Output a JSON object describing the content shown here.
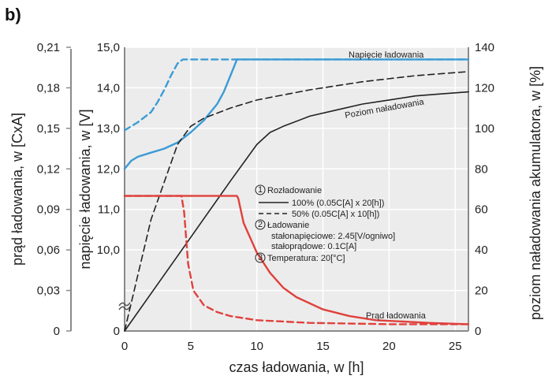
{
  "panel_label": "b)",
  "chart_data": {
    "type": "line",
    "xlabel": "czas ładowania, w [h]",
    "x_ticks": [
      "0",
      "5",
      "10",
      "15",
      "20",
      "25"
    ],
    "xlim": [
      0,
      26
    ],
    "axes": {
      "current": {
        "label": "prąd ładowania, w [CxA]",
        "ticks": [
          "0",
          "0,03",
          "0,06",
          "0,09",
          "0,12",
          "0,15",
          "0,18",
          "0,21"
        ],
        "range": [
          0,
          0.21
        ]
      },
      "voltage": {
        "label": "napięcie ładowania, w [V]",
        "ticks": [
          "10,0",
          "11,0",
          "12,0",
          "13,0",
          "14,0",
          "15,0"
        ],
        "values": [
          10,
          11,
          12,
          13,
          14,
          15
        ],
        "extra_tick": "0",
        "broken_axis": true
      },
      "charge": {
        "label": "poziom naładowania akumulatora, w [%]",
        "ticks": [
          "0",
          "20",
          "40",
          "60",
          "80",
          "100",
          "120",
          "140"
        ],
        "range": [
          0,
          140
        ]
      }
    },
    "series": [
      {
        "name": "Napięcie ładowania",
        "key": "voltage_100",
        "axis": "voltage",
        "style": "solid",
        "color": "#3b9bd6",
        "x": [
          0,
          0.5,
          1,
          2,
          3,
          4,
          5,
          6,
          7,
          7.5,
          8,
          8.5,
          26
        ],
        "y": [
          12.0,
          12.2,
          12.3,
          12.4,
          12.5,
          12.65,
          12.9,
          13.2,
          13.6,
          13.9,
          14.3,
          14.7,
          14.7
        ]
      },
      {
        "key": "voltage_50",
        "axis": "voltage",
        "style": "dashed",
        "color": "#3b9bd6",
        "x": [
          0,
          1,
          2,
          2.5,
          3,
          3.5,
          4,
          4.4,
          26
        ],
        "y": [
          12.95,
          13.15,
          13.4,
          13.65,
          13.95,
          14.3,
          14.6,
          14.7,
          14.7
        ]
      },
      {
        "name": "Poziom naładowania",
        "key": "charge_100",
        "axis": "charge",
        "style": "solid",
        "color": "#222222",
        "x": [
          0,
          4,
          8,
          10,
          11,
          12,
          14,
          16,
          18,
          20,
          22,
          24,
          26
        ],
        "y": [
          0,
          37,
          74,
          92,
          98,
          101,
          106,
          109,
          112,
          114,
          116,
          117,
          118
        ]
      },
      {
        "key": "charge_50",
        "axis": "charge",
        "style": "dashed",
        "color": "#222222",
        "x": [
          0,
          2,
          4,
          5,
          6,
          8,
          10,
          14,
          18,
          22,
          26
        ],
        "y": [
          0,
          55,
          92,
          101,
          105,
          110,
          114,
          119,
          123,
          126,
          128
        ]
      },
      {
        "name": "Prąd ładowania",
        "key": "current_100",
        "axis": "current",
        "style": "solid",
        "color": "#e0413c",
        "x": [
          0,
          8.5,
          8.6,
          9,
          10,
          11,
          12,
          13,
          15,
          17,
          19,
          21,
          23,
          26
        ],
        "y": [
          0.1,
          0.1,
          0.098,
          0.08,
          0.058,
          0.043,
          0.032,
          0.025,
          0.016,
          0.011,
          0.008,
          0.007,
          0.006,
          0.005
        ]
      },
      {
        "key": "current_50",
        "axis": "current",
        "style": "dashed",
        "color": "#e0413c",
        "x": [
          0,
          4.3,
          4.5,
          4.8,
          5.2,
          6,
          7,
          8,
          10,
          14,
          20,
          26
        ],
        "y": [
          0.1,
          0.1,
          0.088,
          0.05,
          0.03,
          0.019,
          0.014,
          0.011,
          0.008,
          0.006,
          0.005,
          0.005
        ]
      }
    ],
    "annotations": {
      "heading1": "Rozładowanie",
      "line1": "100% (0.05C[A] x 20[h])",
      "line2": "50% (0.05C[A] x 10[h])",
      "heading2": "Ładowanie",
      "line3": "stałonapięciowe: 2.45[V/ogniwo]",
      "line4": "stałoprądowe: 0.1C[A]",
      "heading3": "Temperatura: 20[°C]",
      "marker1": "1",
      "marker2": "2",
      "marker3": "3"
    },
    "grid": true
  },
  "colors": {
    "plot_bg": "#ececec",
    "grid": "#ffffff",
    "axis": "#8a8a8a",
    "voltage": "#3b9bd6",
    "current": "#e0413c",
    "charge": "#222222"
  }
}
